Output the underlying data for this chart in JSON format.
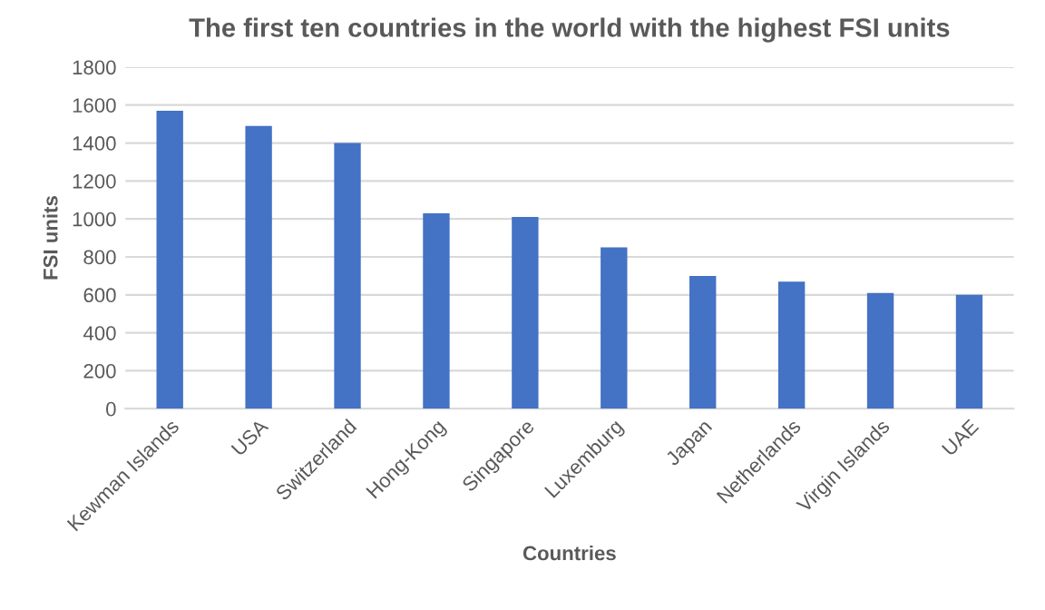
{
  "chart_data": {
    "type": "bar",
    "title": "The first ten countries in the world with the highest FSI units",
    "xlabel": "Countries",
    "ylabel": "FSI units",
    "categories": [
      "Kewman Islands",
      "USA",
      "Switzerland",
      "Hong-Kong",
      "Singapore",
      "Luxemburg",
      "Japan",
      "Netherlands",
      "Virgin Islands",
      "UAE"
    ],
    "values": [
      1570,
      1490,
      1400,
      1030,
      1010,
      850,
      700,
      670,
      610,
      600
    ],
    "color": "#4472c4",
    "ylim": [
      0,
      1800
    ],
    "yticks": [
      0,
      200,
      400,
      600,
      800,
      1000,
      1200,
      1400,
      1600,
      1800
    ],
    "grid": "y"
  }
}
